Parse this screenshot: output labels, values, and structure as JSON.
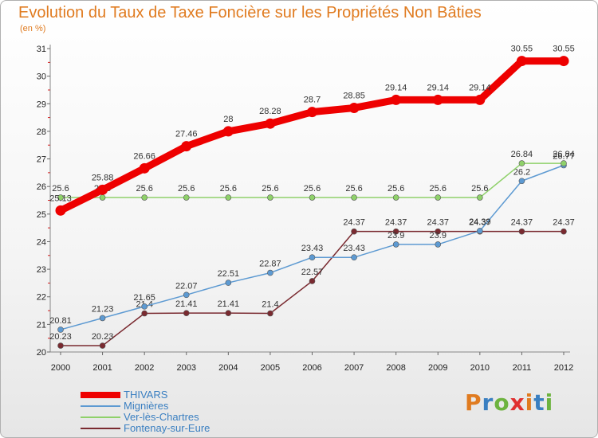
{
  "header": {
    "title": "Evolution du Taux de Taxe Foncière sur les Propriétés Non Bâties",
    "unit": "(en %)"
  },
  "logo": {
    "text": "Proxiti",
    "letters": [
      "P",
      "r",
      "o",
      "x",
      "i",
      "t",
      "i"
    ],
    "colors": [
      "#e07b20",
      "#3a7fc1",
      "#6db33f",
      "#e03030",
      "#e07b20",
      "#3a7fc1",
      "#6db33f"
    ]
  },
  "chart_data": {
    "type": "line",
    "title": "Evolution du Taux de Taxe Foncière sur les Propriétés Non Bâties",
    "xlabel": "",
    "ylabel": "(en %)",
    "categories": [
      "2000",
      "2001",
      "2002",
      "2003",
      "2004",
      "2005",
      "2006",
      "2007",
      "2008",
      "2009",
      "2010",
      "2011",
      "2012"
    ],
    "ylim": [
      20,
      31
    ],
    "yticks": [
      20,
      21,
      22,
      23,
      24,
      25,
      26,
      27,
      28,
      29,
      30,
      31
    ],
    "grid": false,
    "legend": "bottom-left",
    "series": [
      {
        "name": "THIVARS",
        "color": "#ee0000",
        "values": [
          25.13,
          25.88,
          26.66,
          27.46,
          28,
          28.28,
          28.7,
          28.85,
          29.14,
          29.14,
          29.14,
          30.55,
          30.55
        ],
        "labels": [
          "25.13",
          "25.88",
          "26.66",
          "27.46",
          "28",
          "28.28",
          "28.7",
          "28.85",
          "29.14",
          "29.14",
          "29.14",
          "30.55",
          "30.55"
        ]
      },
      {
        "name": "Mignières",
        "color": "#5d9ad2",
        "values": [
          20.81,
          21.23,
          21.65,
          22.07,
          22.51,
          22.87,
          23.43,
          23.43,
          23.9,
          23.9,
          24.39,
          26.2,
          26.77
        ],
        "labels": [
          "20.81",
          "21.23",
          "21.65",
          "22.07",
          "22.51",
          "22.87",
          "23.43",
          "23.43",
          "23.9",
          "23.9",
          "24.39",
          "26.2",
          "26.77"
        ]
      },
      {
        "name": "Ver-lès-Chartres",
        "color": "#8fd16a",
        "values": [
          25.6,
          25.6,
          25.6,
          25.6,
          25.6,
          25.6,
          25.6,
          25.6,
          25.6,
          25.6,
          25.6,
          26.84,
          26.84
        ],
        "labels": [
          "25.6",
          "25.6",
          "25.6",
          "25.6",
          "25.6",
          "25.6",
          "25.6",
          "25.6",
          "25.6",
          "25.6",
          "25.6",
          "26.84",
          "26.84"
        ]
      },
      {
        "name": "Fontenay-sur-Eure",
        "color": "#7a2a30",
        "values": [
          20.23,
          20.23,
          21.4,
          21.41,
          21.41,
          21.4,
          22.57,
          24.37,
          24.37,
          24.37,
          24.37,
          24.37,
          24.37
        ],
        "labels": [
          "20.23",
          "20.23",
          "21.4",
          "21.41",
          "21.41",
          "21.4",
          "22.57",
          "24.37",
          "24.37",
          "24.37",
          "24.37",
          "24.37",
          "24.37"
        ]
      }
    ]
  }
}
